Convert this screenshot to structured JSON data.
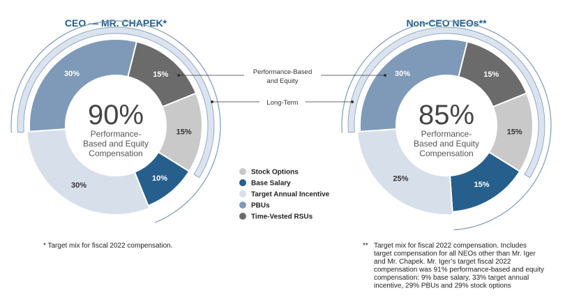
{
  "colors": {
    "stock_options": "#c9c9c9",
    "base_salary": "#265f8c",
    "target_annual_incentive": "#d7dfea",
    "pbus": "#7e9ab8",
    "time_vested_rsus": "#6b6b6b",
    "outer_ring": "#dbe3ee",
    "outer_ring_stroke": "#7e9ab8",
    "title": "#1e5d8c"
  },
  "callouts": {
    "performance_line1": "Performance-Based",
    "performance_line2": "and Equity",
    "long_term": "Long-Term"
  },
  "legend": {
    "items": [
      {
        "key": "stock_options",
        "label": "Stock Options"
      },
      {
        "key": "base_salary",
        "label": "Base Salary"
      },
      {
        "key": "target_annual_incentive",
        "label": "Target Annual Incentive"
      },
      {
        "key": "pbus",
        "label": "PBUs"
      },
      {
        "key": "time_vested_rsus",
        "label": "Time-Vested RSUs"
      }
    ]
  },
  "notes": {
    "left": "* Target mix for fiscal 2022 compensation.",
    "right_marker": "**",
    "right_lines": [
      "Target mix for fiscal 2022 compensation. Includes",
      "target compensation for all NEOs other than Mr. Iger",
      "and Mr. Chapek. Mr. Iger’s target fiscal 2022",
      "compensation was 91% performance-based and equity",
      "compensation: 9% base salary, 33% target annual",
      "incentive, 29% PBUs and 29% stock options"
    ]
  },
  "chart_data": [
    {
      "type": "pie",
      "title": "CEO — MR. CHAPEK*",
      "center_value": "90%",
      "center_label": [
        "Performance-",
        "Based and Equity",
        "Compensation"
      ],
      "slices": [
        {
          "name": "Stock Options",
          "key": "stock_options",
          "value": 15,
          "label": "15%"
        },
        {
          "name": "Base Salary",
          "key": "base_salary",
          "value": 10,
          "label": "10%"
        },
        {
          "name": "Target Annual Incentive",
          "key": "target_annual_incentive",
          "value": 30,
          "label": "30%"
        },
        {
          "name": "PBUs",
          "key": "pbus",
          "value": 30,
          "label": "30%"
        },
        {
          "name": "Time-Vested RSUs",
          "key": "time_vested_rsus",
          "value": 15,
          "label": "15%"
        }
      ]
    },
    {
      "type": "pie",
      "title": "Non-CEO NEOs**",
      "center_value": "85%",
      "center_label": [
        "Performance-",
        "Based and Equity",
        "Compensation"
      ],
      "slices": [
        {
          "name": "Stock Options",
          "key": "stock_options",
          "value": 15,
          "label": "15%"
        },
        {
          "name": "Base Salary",
          "key": "base_salary",
          "value": 15,
          "label": "15%"
        },
        {
          "name": "Target Annual Incentive",
          "key": "target_annual_incentive",
          "value": 25,
          "label": "25%"
        },
        {
          "name": "PBUs",
          "key": "pbus",
          "value": 30,
          "label": "30%"
        },
        {
          "name": "Time-Vested RSUs",
          "key": "time_vested_rsus",
          "value": 15,
          "label": "15%"
        }
      ]
    }
  ]
}
